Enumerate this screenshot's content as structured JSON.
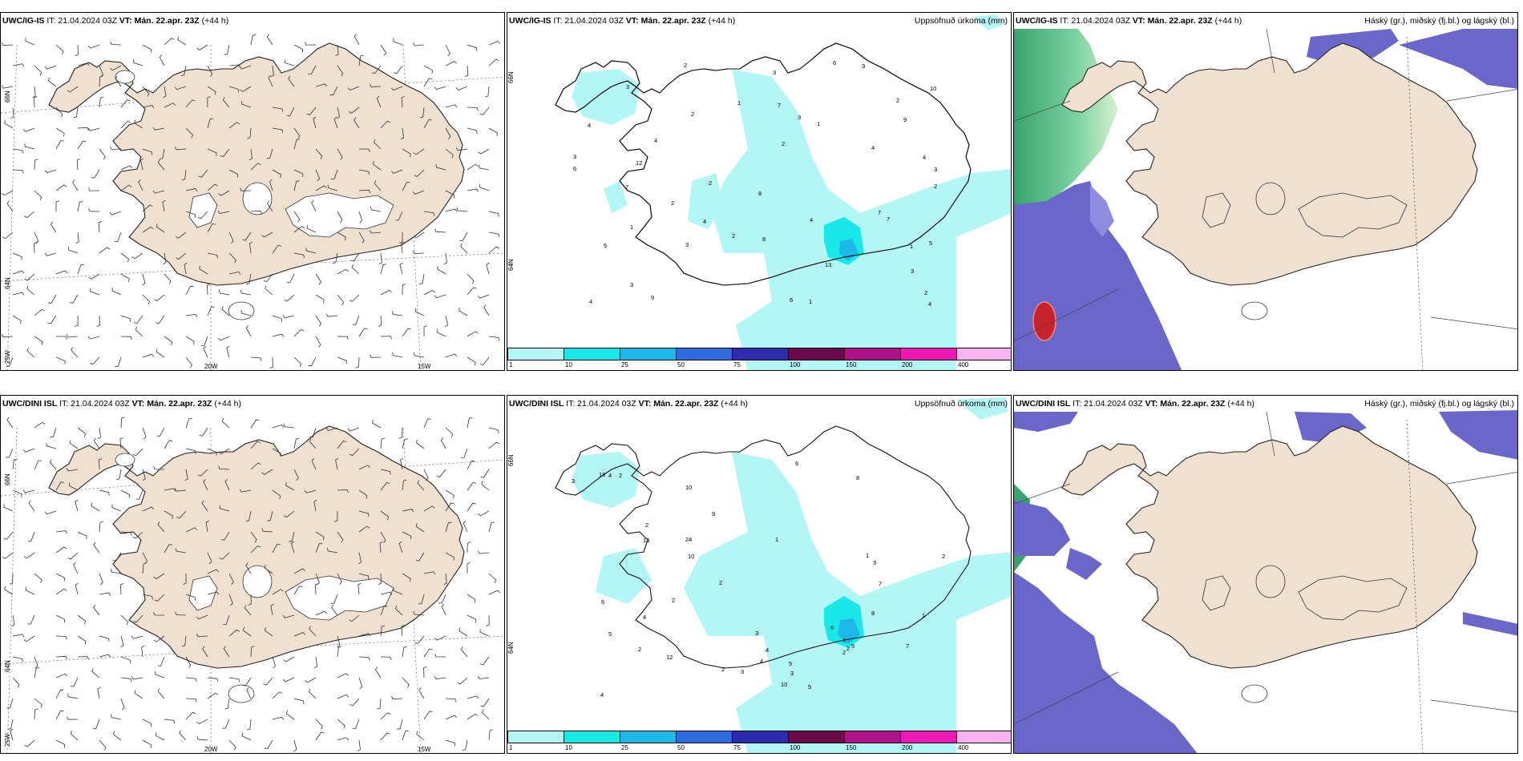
{
  "run_time_label": "IT: 21.04.2024 03Z",
  "valid_time_label": "VT: Mán. 22.apr. 23Z",
  "lead_label": "(+44 h)",
  "models": [
    "UWC/IG-IS",
    "UWC/DINI ISL"
  ],
  "precip_title": "Uppsöfnuð úrkoma (mm)",
  "cloud_title": "Háský (gr.), miðský (fj.bl.) og lágský (bl.)",
  "lon_labels": [
    "20W",
    "15W"
  ],
  "lat_labels": [
    "66N",
    "64N"
  ],
  "lat_labels_left": [
    "66N",
    "64N",
    "25W"
  ],
  "colorbar": {
    "ticks": [
      "1",
      "10",
      "25",
      "50",
      "75",
      "100",
      "150",
      "200",
      "400"
    ],
    "colors": [
      "#b4f6f6",
      "#18e8e8",
      "#1cb9e8",
      "#2f6be0",
      "#2c2cad",
      "#6a0a4a",
      "#b0108a",
      "#f018b4",
      "#f8b4f0"
    ]
  },
  "precip_values_top": [
    "2",
    "4",
    "1",
    "3",
    "2",
    "5",
    "4",
    "6",
    "1",
    "2",
    "4",
    "7",
    "4",
    "3",
    "5",
    "8",
    "2",
    "3",
    "2",
    "1",
    "2",
    "7",
    "3",
    "1",
    "2",
    "3",
    "4",
    "13",
    "6",
    "10",
    "9",
    "4",
    "7",
    "3",
    "12",
    "6",
    "2",
    "4",
    "9",
    "7",
    "1",
    "4",
    "2",
    "8",
    "3",
    "3",
    "3"
  ],
  "precip_values_bottom": [
    "2",
    "4",
    "1",
    "3",
    "2",
    "5",
    "4",
    "6",
    "1",
    "2",
    "4",
    "7",
    "3",
    "5",
    "8",
    "3",
    "1",
    "2",
    "1",
    "3",
    "2",
    "7",
    "13",
    "10",
    "5",
    "12",
    "6",
    "10",
    "10",
    "24",
    "18",
    "6",
    "8",
    "3",
    "2",
    "9",
    "4",
    "5",
    "2",
    "2",
    "4",
    "2"
  ],
  "colors": {
    "land": "#efe0d0",
    "precip_light": "#b4f6f6",
    "cloud_low": "#6a67c8",
    "cloud_mid": "#3aa36d",
    "cloud_high": "#c8222a"
  }
}
